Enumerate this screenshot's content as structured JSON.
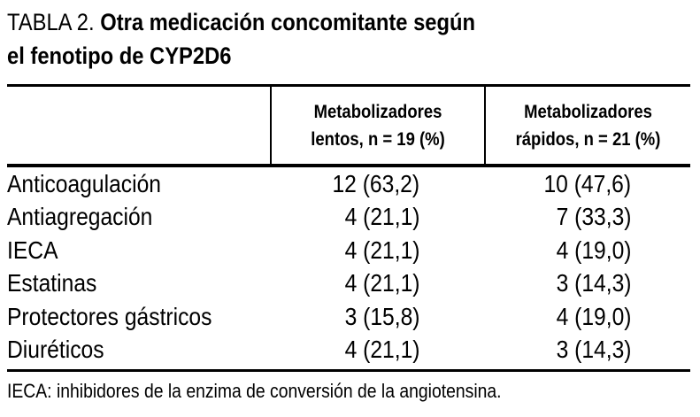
{
  "title": {
    "prefix": "TABLA 2.",
    "line1_bold": "Otra medicación concomitante según",
    "line2_bold": "el fenotipo de CYP2D6"
  },
  "header": {
    "slow": {
      "line1": "Metabolizadores",
      "line2": "lentos, n = 19 (%)"
    },
    "fast": {
      "line1": "Metabolizadores",
      "line2": "rápidos, n = 21 (%)"
    }
  },
  "rows": [
    {
      "label": "Anticoagulación",
      "slow": "12 (63,2)",
      "fast": "10 (47,6)"
    },
    {
      "label": "Antiagregación",
      "slow": "4 (21,1)",
      "fast": "7 (33,3)"
    },
    {
      "label": "IECA",
      "slow": "4 (21,1)",
      "fast": "4 (19,0)"
    },
    {
      "label": "Estatinas",
      "slow": "4 (21,1)",
      "fast": "3 (14,3)"
    },
    {
      "label": "Protectores gástricos",
      "slow": "3 (15,8)",
      "fast": "4 (19,0)"
    },
    {
      "label": "Diuréticos",
      "slow": "4 (21,1)",
      "fast": "3 (14,3)"
    }
  ],
  "footnote": "IECA: inhibidores de la enzima de conversión de la angiotensina.",
  "colors": {
    "text": "#000000",
    "background": "#ffffff",
    "rule": "#000000"
  },
  "chart_data": {
    "type": "table",
    "title": "TABLA 2. Otra medicación concomitante según el fenotipo de CYP2D6",
    "columns": [
      "",
      "Metabolizadores lentos, n = 19 (%)",
      "Metabolizadores rápidos, n = 21 (%)"
    ],
    "rows": [
      [
        "Anticoagulación",
        "12 (63,2)",
        "10 (47,6)"
      ],
      [
        "Antiagregación",
        "4 (21,1)",
        "7 (33,3)"
      ],
      [
        "IECA",
        "4 (21,1)",
        "4 (19,0)"
      ],
      [
        "Estatinas",
        "4 (21,1)",
        "3 (14,3)"
      ],
      [
        "Protectores gástricos",
        "3 (15,8)",
        "4 (19,0)"
      ],
      [
        "Diuréticos",
        "4 (21,1)",
        "3 (14,3)"
      ]
    ],
    "footnote": "IECA: inhibidores de la enzima de conversión de la angiotensina."
  }
}
